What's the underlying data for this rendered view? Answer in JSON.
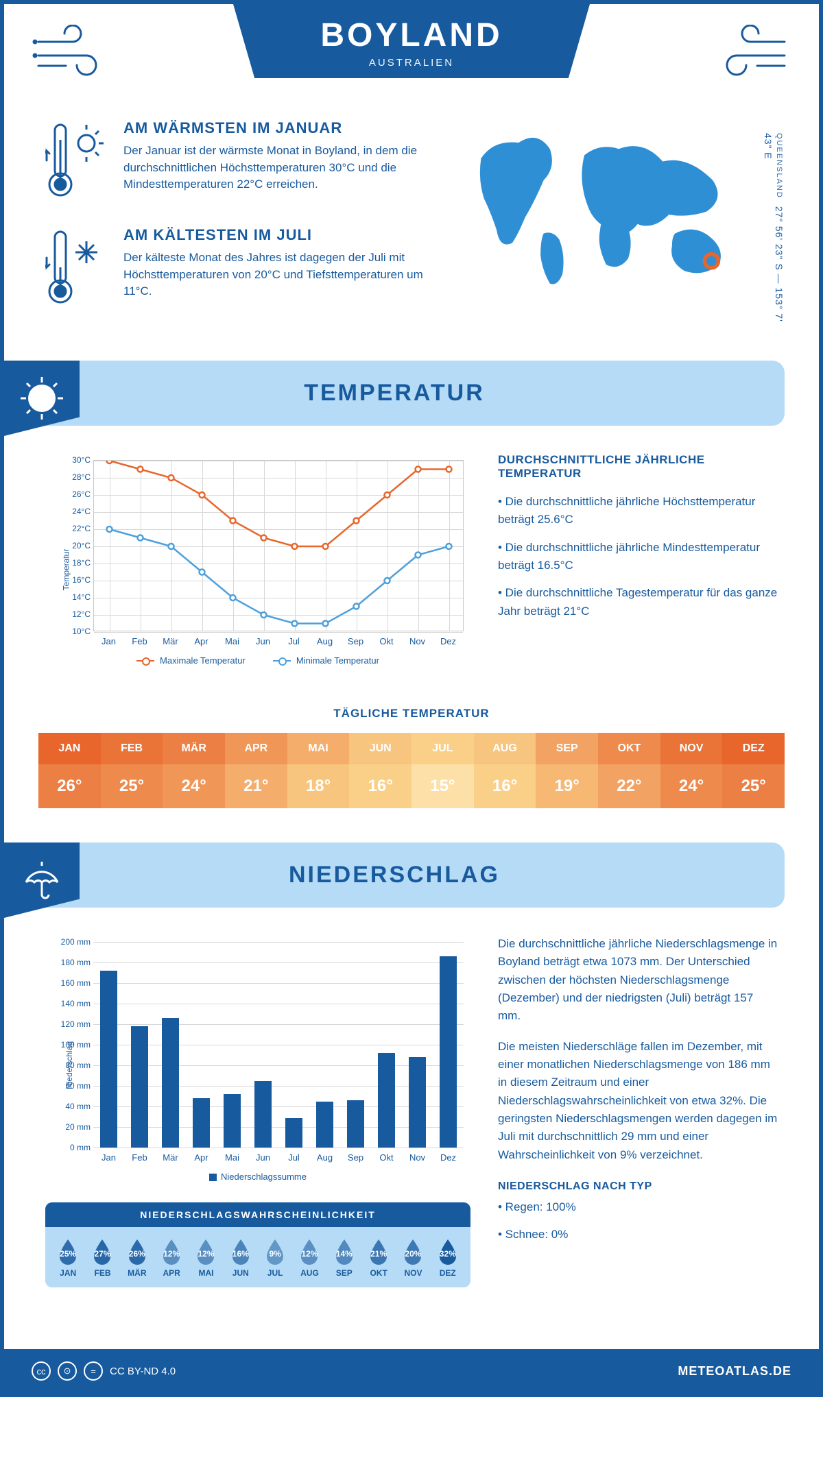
{
  "colors": {
    "primary": "#175a9e",
    "light": "#b6dbf6",
    "max_line": "#e8662c",
    "min_line": "#4da0dc",
    "grid": "#d8d8d8"
  },
  "header": {
    "title": "BOYLAND",
    "subtitle": "AUSTRALIEN"
  },
  "location": {
    "region": "QUEENSLAND",
    "coords": "27° 56' 23\" S — 153° 7' 43\" E"
  },
  "facts": {
    "warm": {
      "title": "AM WÄRMSTEN IM JANUAR",
      "text": "Der Januar ist der wärmste Monat in Boyland, in dem die durchschnittlichen Höchsttemperaturen 30°C und die Mindesttemperaturen 22°C erreichen."
    },
    "cold": {
      "title": "AM KÄLTESTEN IM JULI",
      "text": "Der kälteste Monat des Jahres ist dagegen der Juli mit Höchsttemperaturen von 20°C und Tiefsttemperaturen um 11°C."
    }
  },
  "sections": {
    "temperature": "TEMPERATUR",
    "precipitation": "NIEDERSCHLAG"
  },
  "months": [
    "Jan",
    "Feb",
    "Mär",
    "Apr",
    "Mai",
    "Jun",
    "Jul",
    "Aug",
    "Sep",
    "Okt",
    "Nov",
    "Dez"
  ],
  "months_upper": [
    "JAN",
    "FEB",
    "MÄR",
    "APR",
    "MAI",
    "JUN",
    "JUL",
    "AUG",
    "SEP",
    "OKT",
    "NOV",
    "DEZ"
  ],
  "temp_chart": {
    "ylabel": "Temperatur",
    "ymin": 10,
    "ymax": 30,
    "ystep": 2,
    "yunit": "°C",
    "max_series": [
      30,
      29,
      28,
      26,
      23,
      21,
      20,
      20,
      23,
      26,
      29,
      29
    ],
    "min_series": [
      22,
      21,
      20,
      17,
      14,
      12,
      11,
      11,
      13,
      16,
      19,
      20
    ],
    "legend_max": "Maximale Temperatur",
    "legend_min": "Minimale Temperatur"
  },
  "temp_desc": {
    "title": "DURCHSCHNITTLICHE JÄHRLICHE TEMPERATUR",
    "b1": "• Die durchschnittliche jährliche Höchsttemperatur beträgt 25.6°C",
    "b2": "• Die durchschnittliche jährliche Mindesttemperatur beträgt 16.5°C",
    "b3": "• Die durchschnittliche Tagestemperatur für das ganze Jahr beträgt 21°C"
  },
  "daily_temp": {
    "title": "TÄGLICHE TEMPERATUR",
    "values": [
      "26°",
      "25°",
      "24°",
      "21°",
      "18°",
      "16°",
      "15°",
      "16°",
      "19°",
      "22°",
      "24°",
      "25°"
    ],
    "header_colors": [
      "#e8662c",
      "#ea7338",
      "#ec7f44",
      "#f09657",
      "#f4ad6b",
      "#f8c57f",
      "#fad088",
      "#f8c57f",
      "#f2a262",
      "#ee8a4c",
      "#ea7338",
      "#e8662c"
    ],
    "value_colors": [
      "#ec7f44",
      "#ee8a4c",
      "#f09657",
      "#f4ad6b",
      "#f8c57f",
      "#fad088",
      "#fce0a8",
      "#fad088",
      "#f6b873",
      "#f2a262",
      "#ee8a4c",
      "#ec7f44"
    ]
  },
  "precip_chart": {
    "ylabel": "Niederschlag",
    "ymin": 0,
    "ymax": 200,
    "ystep": 20,
    "yunit": " mm",
    "values": [
      172,
      118,
      126,
      48,
      52,
      65,
      29,
      45,
      46,
      92,
      88,
      186
    ],
    "bar_color": "#175a9e",
    "legend": "Niederschlagssumme"
  },
  "precip_desc": {
    "p1": "Die durchschnittliche jährliche Niederschlagsmenge in Boyland beträgt etwa 1073 mm. Der Unterschied zwischen der höchsten Niederschlagsmenge (Dezember) und der niedrigsten (Juli) beträgt 157 mm.",
    "p2": "Die meisten Niederschläge fallen im Dezember, mit einer monatlichen Niederschlagsmenge von 186 mm in diesem Zeitraum und einer Niederschlagswahrscheinlichkeit von etwa 32%. Die geringsten Niederschlagsmengen werden dagegen im Juli mit durchschnittlich 29 mm und einer Wahrscheinlichkeit von 9% verzeichnet.",
    "type_title": "NIEDERSCHLAG NACH TYP",
    "type_1": "• Regen: 100%",
    "type_2": "• Schnee: 0%"
  },
  "precip_prob": {
    "title": "NIEDERSCHLAGSWAHRSCHEINLICHKEIT",
    "values": [
      "25%",
      "27%",
      "26%",
      "12%",
      "12%",
      "16%",
      "9%",
      "12%",
      "14%",
      "21%",
      "20%",
      "32%"
    ],
    "max_pct": 32
  },
  "footer": {
    "license": "CC BY-ND 4.0",
    "brand": "METEOATLAS.DE"
  }
}
